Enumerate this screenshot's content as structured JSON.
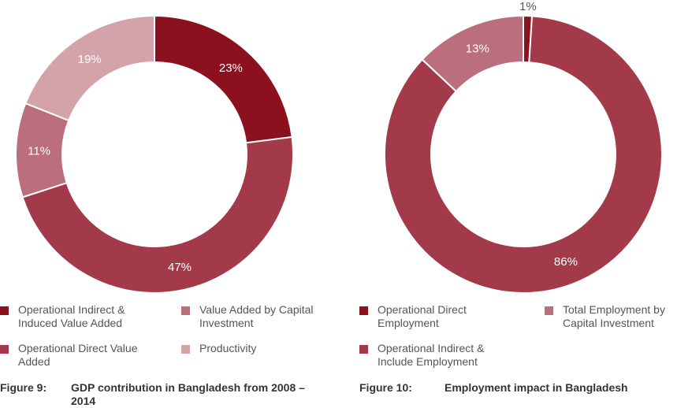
{
  "chart_data": [
    {
      "type": "pie",
      "variant": "donut",
      "caption_number": "Figure 9:",
      "caption_title": "GDP contribution in Bangladesh from 2008 – 2014",
      "series": [
        {
          "name": "Operational Indirect & Induced Value Added",
          "value": 23,
          "label": "23%",
          "color": "#8b111f"
        },
        {
          "name": "Operational Direct Value Added",
          "value": 47,
          "label": "47%",
          "color": "#a23a49"
        },
        {
          "name": "Value Added by Capital Investment",
          "value": 11,
          "label": "11%",
          "color": "#bb6e7b"
        },
        {
          "name": "Productivity",
          "value": 19,
          "label": "19%",
          "color": "#d4a3a9"
        }
      ],
      "legend": [
        {
          "label": "Operational Indirect & Induced Value Added",
          "color": "#8b111f"
        },
        {
          "label": "Value Added by Capital Investment",
          "color": "#bb6e7b"
        },
        {
          "label": "Operational Direct Value Added",
          "color": "#a23a49"
        },
        {
          "label": "Productivity",
          "color": "#d4a3a9"
        }
      ],
      "legend_placement": "bottom"
    },
    {
      "type": "pie",
      "variant": "donut",
      "caption_number": "Figure 10:",
      "caption_title": "Employment impact in Bangladesh",
      "series": [
        {
          "name": "Operational Direct Employment",
          "value": 1,
          "label": "1%",
          "color": "#8b111f"
        },
        {
          "name": "Operational Indirect & Include Employment",
          "value": 86,
          "label": "86%",
          "color": "#a23a49"
        },
        {
          "name": "Total Employment by Capital Investment",
          "value": 13,
          "label": "13%",
          "color": "#bb6e7b"
        }
      ],
      "legend": [
        {
          "label": "Operational Direct Employment",
          "color": "#8b111f"
        },
        {
          "label": "Total Employment by Capital Investment",
          "color": "#bb6e7b"
        },
        {
          "label": "Operational Indirect & Include Employment",
          "color": "#a23a49"
        }
      ],
      "legend_placement": "bottom"
    }
  ]
}
